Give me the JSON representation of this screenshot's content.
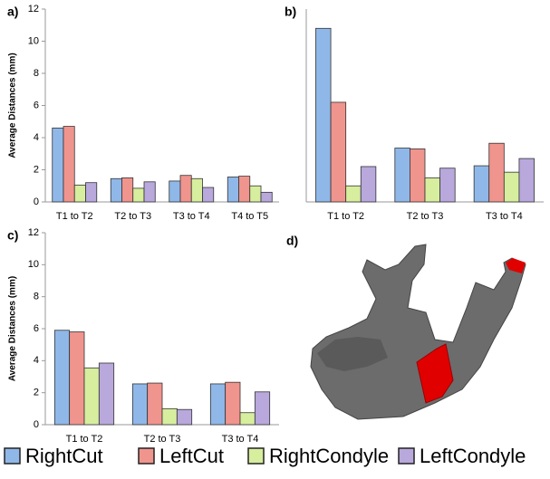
{
  "chart_data": [
    {
      "type": "bar",
      "label": "a)",
      "ylabel": "Average Distances (mm)",
      "categories": [
        "T1 to T2",
        "T2 to T3",
        "T3 to T4",
        "T4 to T5"
      ],
      "series": [
        {
          "values": [
            4.6,
            1.45,
            1.3,
            1.55
          ]
        },
        {
          "values": [
            4.7,
            1.5,
            1.65,
            1.6
          ]
        },
        {
          "values": [
            1.05,
            0.85,
            1.45,
            1.0
          ]
        },
        {
          "values": [
            1.2,
            1.25,
            0.9,
            0.6
          ]
        }
      ],
      "ylim": [
        0,
        12
      ],
      "yticks": [
        0,
        2,
        4,
        6,
        8,
        10,
        12
      ]
    },
    {
      "type": "bar",
      "label": "b)",
      "categories": [
        "T1 to T2",
        "T2 to T3",
        "T3 to T4"
      ],
      "series": [
        {
          "values": [
            10.8,
            3.35,
            2.25
          ]
        },
        {
          "values": [
            6.2,
            3.3,
            3.65
          ]
        },
        {
          "values": [
            1.0,
            1.5,
            1.85
          ]
        },
        {
          "values": [
            2.2,
            2.1,
            2.7
          ]
        }
      ],
      "ylim": [
        0,
        12
      ]
    },
    {
      "type": "bar",
      "label": "c)",
      "ylabel": "Average Distances (mm)",
      "categories": [
        "T1 to T2",
        "T2 to T3",
        "T3 to T4"
      ],
      "series": [
        {
          "values": [
            5.9,
            2.55,
            2.55
          ]
        },
        {
          "values": [
            5.8,
            2.6,
            2.65
          ]
        },
        {
          "values": [
            3.55,
            1.0,
            0.75
          ]
        },
        {
          "values": [
            3.85,
            0.95,
            2.05
          ]
        }
      ],
      "ylim": [
        0,
        12
      ],
      "yticks": [
        0,
        2,
        4,
        6,
        8,
        10,
        12
      ]
    }
  ],
  "legend": [
    {
      "name": "RightCut",
      "color": "#8fb8e8"
    },
    {
      "name": "LeftCut",
      "color": "#f0948e"
    },
    {
      "name": "RightCondyle",
      "color": "#d6ee9e"
    },
    {
      "name": "LeftCondyle",
      "color": "#b8a8dc"
    }
  ],
  "image_panel": {
    "label": "d)"
  }
}
